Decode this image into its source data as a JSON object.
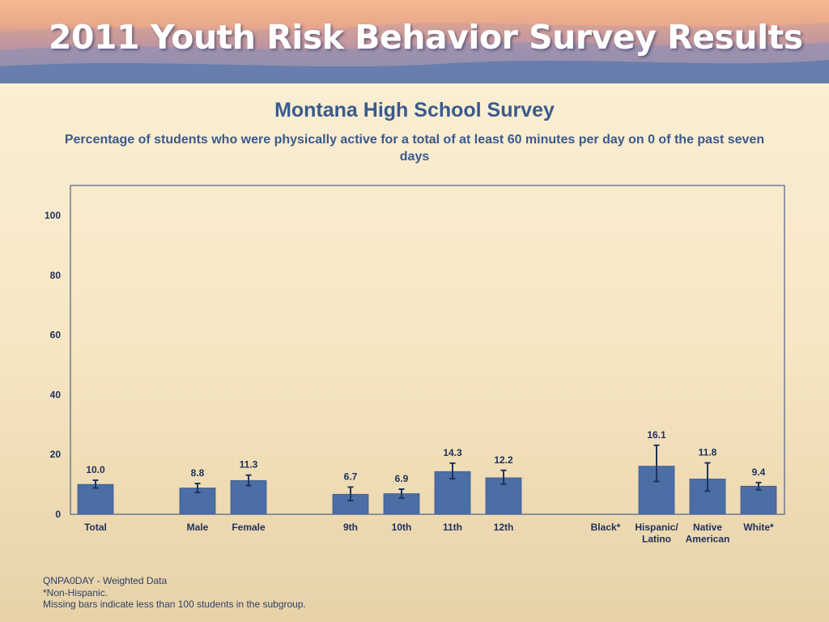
{
  "banner": {
    "title": "2011 Youth Risk Behavior Survey Results"
  },
  "chart_data": {
    "type": "bar",
    "title": "Montana High School Survey",
    "subtitle": "Percentage of students who were physically active for a total of at least 60 minutes per day on 0 of the past seven days",
    "ylim": [
      0,
      110
    ],
    "yticks": [
      0,
      20,
      40,
      60,
      80,
      100
    ],
    "grid": false,
    "categories": [
      {
        "label": [
          "Total"
        ],
        "value": 10.0,
        "ci": [
          8.8,
          11.4
        ],
        "label_text": "10.0"
      },
      {
        "label": [
          "Male"
        ],
        "value": 8.8,
        "ci": [
          7.3,
          10.3
        ],
        "label_text": "8.8"
      },
      {
        "label": [
          "Female"
        ],
        "value": 11.3,
        "ci": [
          9.6,
          13.1
        ],
        "label_text": "11.3"
      },
      {
        "label": [
          "9th"
        ],
        "value": 6.7,
        "ci": [
          4.6,
          9.1
        ],
        "label_text": "6.7"
      },
      {
        "label": [
          "10th"
        ],
        "value": 6.9,
        "ci": [
          5.4,
          8.4
        ],
        "label_text": "6.9"
      },
      {
        "label": [
          "11th"
        ],
        "value": 14.3,
        "ci": [
          11.9,
          17.1
        ],
        "label_text": "14.3"
      },
      {
        "label": [
          "12th"
        ],
        "value": 12.2,
        "ci": [
          10.1,
          14.7
        ],
        "label_text": "12.2"
      },
      {
        "label": [
          "Black*"
        ],
        "value": null,
        "ci": null,
        "label_text": ""
      },
      {
        "label": [
          "Hispanic/",
          "Latino"
        ],
        "value": 16.1,
        "ci": [
          11.0,
          23.1
        ],
        "label_text": "16.1"
      },
      {
        "label": [
          "Native",
          "American"
        ],
        "value": 11.8,
        "ci": [
          7.8,
          17.2
        ],
        "label_text": "11.8"
      },
      {
        "label": [
          "White*"
        ],
        "value": 9.4,
        "ci": [
          8.2,
          10.6
        ],
        "label_text": "9.4"
      }
    ],
    "colors": {
      "bar": "#4b6ea5",
      "bar_edge": "#3d5c8f",
      "frame": "#4b5f8c",
      "text": "#3a5a8c",
      "axis_text": "#1f2f5a"
    }
  },
  "footnotes": [
    "QNPA0DAY - Weighted Data",
    "*Non-Hispanic.",
    "Missing bars indicate less than 100 students in the subgroup."
  ]
}
